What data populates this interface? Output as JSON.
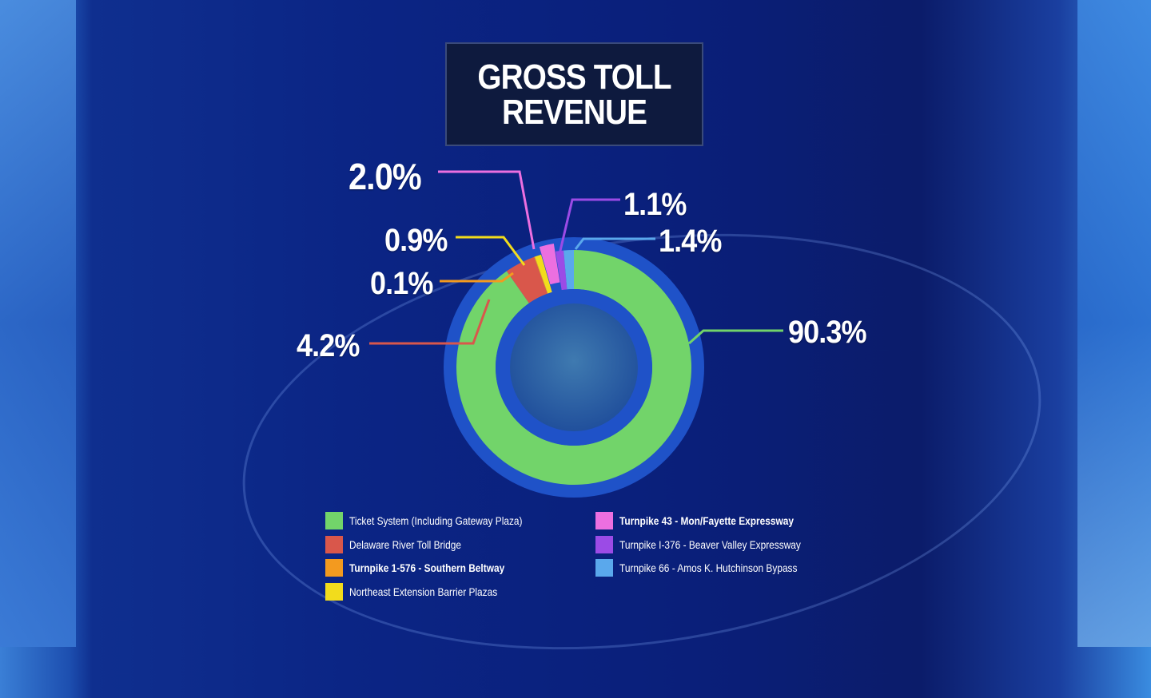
{
  "chart_data": {
    "type": "pie",
    "title": "GROSS TOLL REVENUE",
    "title_lines": [
      "GROSS TOLL",
      "REVENUE"
    ],
    "donut": true,
    "legend_position": "bottom",
    "slices": [
      {
        "label": "Ticket System (Including Gateway Plaza)",
        "value": 90.3,
        "display": "90.3%",
        "color": "#72d46a"
      },
      {
        "label": "Delaware River Toll Bridge",
        "value": 4.2,
        "display": "4.2%",
        "color": "#d9574b"
      },
      {
        "label": "Turnpike 1-576 - Southern Beltway",
        "value": 0.1,
        "display": "0.1%",
        "color": "#f39a1f"
      },
      {
        "label": "Northeast Extension Barrier Plazas",
        "value": 0.9,
        "display": "0.9%",
        "color": "#f2dc1c"
      },
      {
        "label": "Turnpike 43 - Mon/Fayette Expressway",
        "value": 2.0,
        "display": "2.0%",
        "color": "#ec6fe0"
      },
      {
        "label": "Turnpike I-376 - Beaver Valley Expressway",
        "value": 1.1,
        "display": "1.1%",
        "color": "#9b4be6"
      },
      {
        "label": "Turnpike 66 - Amos K. Hutchinson Bypass",
        "value": 1.4,
        "display": "1.4%",
        "color": "#5aa8ec"
      }
    ]
  }
}
